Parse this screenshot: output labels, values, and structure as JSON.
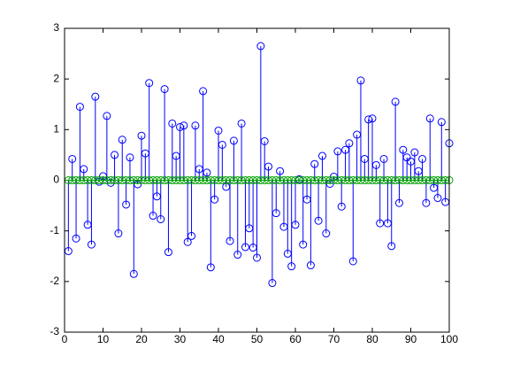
{
  "chart_data": {
    "type": "stem",
    "x": [
      1,
      2,
      3,
      4,
      5,
      6,
      7,
      8,
      9,
      10,
      11,
      12,
      13,
      14,
      15,
      16,
      17,
      18,
      19,
      20,
      21,
      22,
      23,
      24,
      25,
      26,
      27,
      28,
      29,
      30,
      31,
      32,
      33,
      34,
      35,
      36,
      37,
      38,
      39,
      40,
      41,
      42,
      43,
      44,
      45,
      46,
      47,
      48,
      49,
      50,
      51,
      52,
      53,
      54,
      55,
      56,
      57,
      58,
      59,
      60,
      61,
      62,
      63,
      64,
      65,
      66,
      67,
      68,
      69,
      70,
      71,
      72,
      73,
      74,
      75,
      76,
      77,
      78,
      79,
      80,
      81,
      82,
      83,
      84,
      85,
      86,
      87,
      88,
      89,
      90,
      91,
      92,
      93,
      94,
      95,
      96,
      97,
      98,
      99,
      100
    ],
    "series": [
      {
        "color": "#0000ff",
        "values": [
          -1.4,
          0.42,
          -1.15,
          1.45,
          0.22,
          -0.88,
          -1.27,
          1.65,
          -0.03,
          0.08,
          1.27,
          -0.05,
          0.5,
          -1.05,
          0.8,
          -0.48,
          0.45,
          -1.85,
          -0.08,
          0.88,
          0.53,
          1.92,
          -0.7,
          -0.32,
          -0.77,
          1.8,
          -1.42,
          1.12,
          0.48,
          1.05,
          1.08,
          -1.22,
          -1.1,
          1.08,
          0.22,
          1.76,
          0.15,
          -1.72,
          -0.38,
          0.98,
          0.7,
          -0.13,
          -1.2,
          0.78,
          -1.47,
          1.12,
          -1.32,
          -0.95,
          -1.33,
          -1.53,
          2.65,
          0.77,
          0.27,
          -2.03,
          -0.65,
          0.18,
          -0.92,
          -1.45,
          -1.7,
          -0.88,
          0.02,
          -1.27,
          -0.38,
          -1.68,
          0.32,
          -0.8,
          0.48,
          -1.05,
          -0.07,
          0.07,
          0.57,
          -0.52,
          0.6,
          0.73,
          -1.6,
          0.9,
          1.97,
          0.42,
          1.2,
          1.22,
          0.3,
          -0.85,
          0.42,
          -0.85,
          -1.3,
          1.55,
          -0.45,
          0.6,
          0.45,
          0.37,
          0.55,
          0.18,
          0.42,
          -0.45,
          1.22,
          -0.15,
          -0.35,
          1.15,
          -0.43,
          0.73
        ]
      },
      {
        "color": "#00a000",
        "values": [
          0,
          0,
          0,
          0,
          0,
          0,
          0,
          0,
          0,
          0,
          0,
          0,
          0,
          0,
          0,
          0,
          0,
          0,
          0,
          0,
          0,
          0,
          0,
          0,
          0,
          0,
          0,
          0,
          0,
          0,
          0,
          0,
          0,
          0,
          0,
          0,
          0,
          0,
          0,
          0,
          0,
          0,
          0,
          0,
          0,
          0,
          0,
          0,
          0,
          0,
          0,
          0,
          0,
          0,
          0,
          0,
          0,
          0,
          0,
          0,
          0,
          0,
          0,
          0,
          0,
          0,
          0,
          0,
          0,
          0,
          0,
          0,
          0,
          0,
          0,
          0,
          0,
          0,
          0,
          0,
          0,
          0,
          0,
          0,
          0,
          0,
          0,
          0,
          0,
          0,
          0,
          0,
          0,
          0,
          0,
          0,
          0,
          0,
          0,
          0
        ]
      }
    ],
    "xlim": [
      0,
      100
    ],
    "xticks": [
      0,
      10,
      20,
      30,
      40,
      50,
      60,
      70,
      80,
      90,
      100
    ],
    "ylim": [
      -3,
      3
    ],
    "yticks": [
      -3,
      -2,
      -1,
      0,
      1,
      2,
      3
    ]
  }
}
